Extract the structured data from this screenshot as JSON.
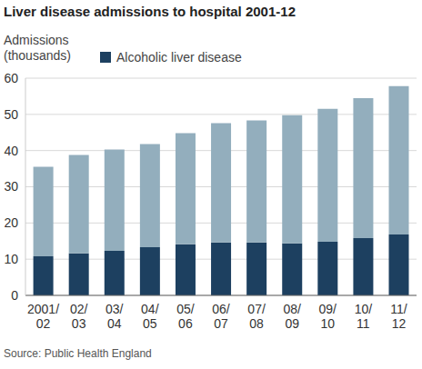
{
  "chart_data": {
    "type": "bar",
    "title": "Liver disease admissions to hospital 2001-12",
    "y_label": "Admissions (thousands)",
    "source": "Source: Public Health England",
    "categories": [
      "2001/02",
      "02/03",
      "03/04",
      "04/05",
      "05/06",
      "06/07",
      "07/08",
      "08/09",
      "09/10",
      "10/11",
      "11/12"
    ],
    "series": [
      {
        "name": "Alcoholic liver disease",
        "color": "#1d4060",
        "values": [
          10.8,
          11.6,
          12.3,
          13.3,
          14.1,
          14.6,
          14.6,
          14.4,
          14.8,
          15.8,
          16.8
        ]
      },
      {
        "color": "#93aebd",
        "values": [
          24.7,
          27.2,
          28.0,
          28.5,
          30.7,
          33.0,
          33.7,
          35.4,
          36.7,
          38.7,
          41.0
        ]
      }
    ],
    "ylim": [
      0,
      60
    ],
    "yticks": [
      0,
      10,
      20,
      30,
      40,
      50,
      60
    ],
    "grid": true,
    "stacked": true,
    "legend": "top-left"
  }
}
